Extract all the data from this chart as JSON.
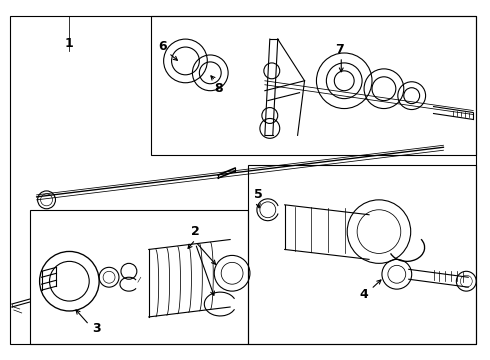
{
  "bg_color": "#ffffff",
  "line_color": "#000000",
  "fig_width": 4.9,
  "fig_height": 3.6,
  "dpi": 100,
  "label_fontsize": 9,
  "label_bold": true
}
